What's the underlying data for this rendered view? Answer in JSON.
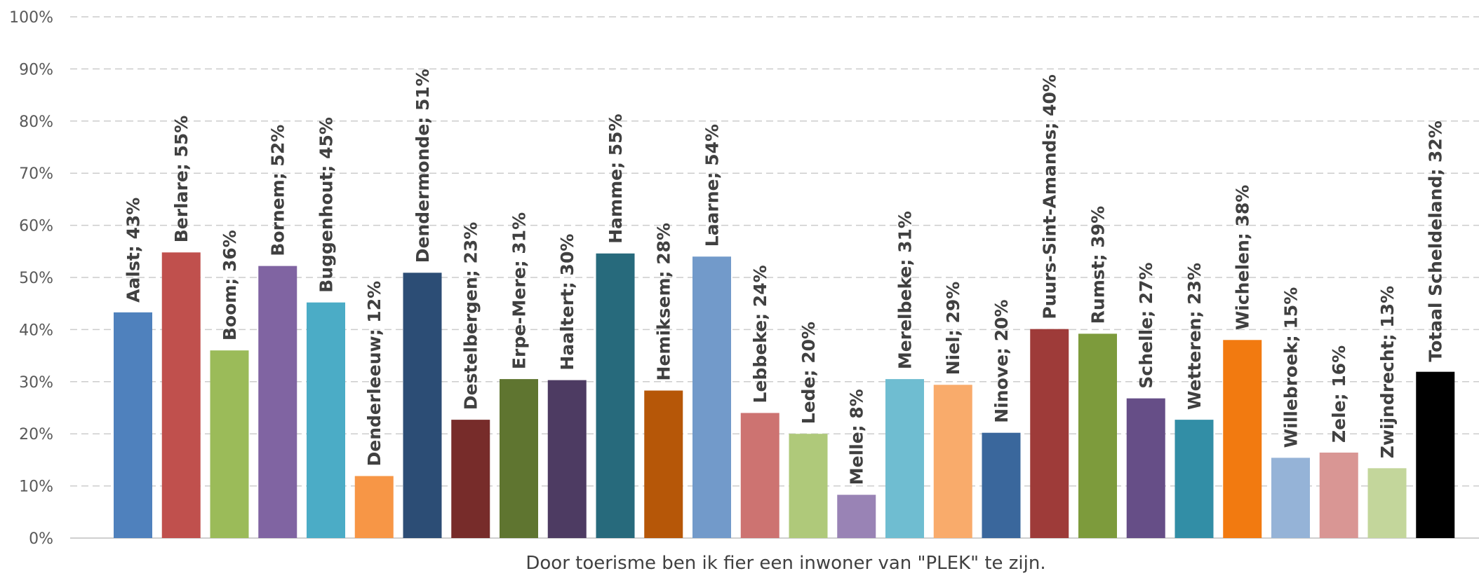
{
  "chart_data": {
    "type": "bar",
    "xlabel": "Door toerisme ben ik fier een inwoner van \"PLEK\" te zijn.",
    "ylabel": "",
    "ylim": [
      0,
      100
    ],
    "yticks": [
      "0%",
      "10%",
      "20%",
      "30%",
      "40%",
      "50%",
      "60%",
      "70%",
      "80%",
      "90%",
      "100%"
    ],
    "grid": true,
    "categories": [
      "Aalst",
      "Berlare",
      "Boom",
      "Bornem",
      "Buggenhout",
      "Denderleeuw",
      "Dendermonde",
      "Destelbergen",
      "Erpe-Mere",
      "Haaltert",
      "Hamme",
      "Hemiksem",
      "Laarne",
      "Lebbeke",
      "Lede",
      "Melle",
      "Merelbeke",
      "Niel",
      "Ninove",
      "Puurs-Sint-Amands",
      "Rumst",
      "Schelle",
      "Wetteren",
      "Wichelen",
      "Willebroek",
      "Zele",
      "Zwijndrecht",
      "Totaal Scheldeland"
    ],
    "values": [
      43.3,
      54.8,
      36.0,
      52.2,
      45.2,
      11.9,
      50.9,
      22.7,
      30.5,
      30.3,
      54.6,
      28.3,
      54.0,
      24.0,
      20.0,
      8.3,
      30.5,
      29.4,
      20.2,
      40.1,
      39.2,
      26.8,
      22.7,
      38.0,
      15.4,
      16.4,
      13.4,
      31.9
    ],
    "data_labels": [
      "Aalst; 43%",
      "Berlare; 55%",
      "Boom; 36%",
      "Bornem; 52%",
      "Buggenhout; 45%",
      "Denderleeuw; 12%",
      "Dendermonde; 51%",
      "Destelbergen; 23%",
      "Erpe-Mere; 31%",
      "Haaltert; 30%",
      "Hamme; 55%",
      "Hemiksem; 28%",
      "Laarne; 54%",
      "Lebbeke; 24%",
      "Lede; 20%",
      "Melle; 8%",
      "Merelbeke; 31%",
      "Niel; 29%",
      "Ninove; 20%",
      "Puurs-Sint-Amands; 40%",
      "Rumst; 39%",
      "Schelle; 27%",
      "Wetteren; 23%",
      "Wichelen; 38%",
      "Willebroek; 15%",
      "Zele; 16%",
      "Zwijndrecht; 13%",
      "Totaal Scheldeland; 32%"
    ],
    "colors": [
      "#4f81bd",
      "#c0504d",
      "#9bbb59",
      "#8064a2",
      "#4bacc6",
      "#f79646",
      "#2c4d75",
      "#772c2a",
      "#5f7530",
      "#4d3b62",
      "#276a7c",
      "#b65708",
      "#729aca",
      "#cd7371",
      "#afc97a",
      "#9983b5",
      "#6fbdd1",
      "#f9ab6b",
      "#3a679c",
      "#9e3b39",
      "#7d9b3c",
      "#664e87",
      "#328ea6",
      "#f27a10",
      "#95b3d7",
      "#d99694",
      "#c3d69b",
      "#000000"
    ]
  }
}
